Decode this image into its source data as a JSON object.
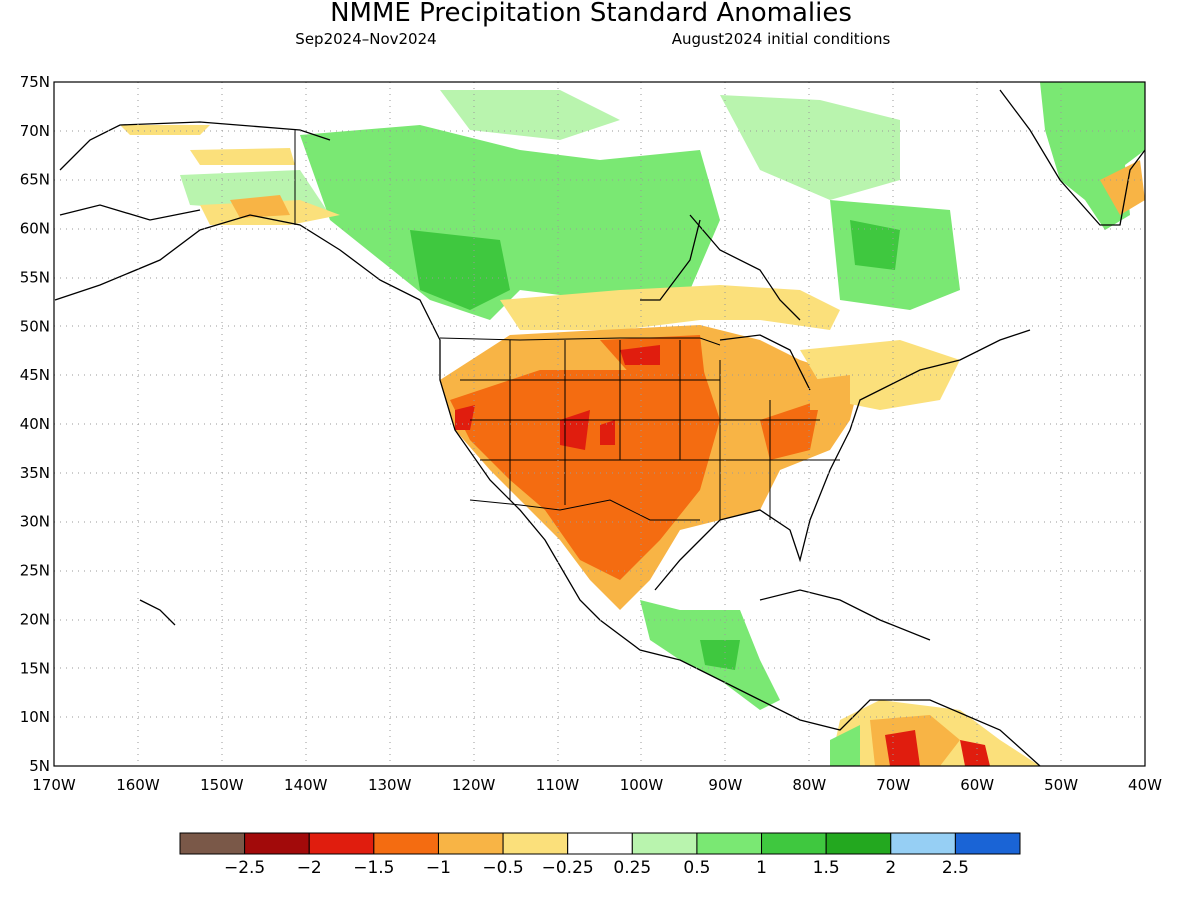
{
  "title": "NMME Precipitation Standard Anomalies",
  "subtitle_left": "Sep2024–Nov2024",
  "subtitle_right": "August2024 initial conditions",
  "map": {
    "lon_range": [
      -170,
      -40
    ],
    "lat_range": [
      5,
      75
    ],
    "lat_labels": [
      "75N",
      "70N",
      "65N",
      "60N",
      "55N",
      "50N",
      "45N",
      "40N",
      "35N",
      "30N",
      "25N",
      "20N",
      "15N",
      "10N",
      "5N"
    ],
    "lon_labels": [
      "170W",
      "160W",
      "150W",
      "140W",
      "130W",
      "120W",
      "110W",
      "100W",
      "90W",
      "80W",
      "70W",
      "60W",
      "50W",
      "40W"
    ],
    "gridlines": "dotted"
  },
  "colorbar": {
    "colors": [
      "#7a5848",
      "#a20a0a",
      "#e01d0e",
      "#f46c11",
      "#f8b445",
      "#fbe07b",
      "#ffffff",
      "#b9f4ae",
      "#7ae873",
      "#3fc83f",
      "#23a81f",
      "#96cff4",
      "#1a64d6"
    ],
    "labels": [
      "−2.5",
      "−2",
      "−1.5",
      "−1",
      "−0.5",
      "−0.25",
      "0.25",
      "0.5",
      "1",
      "1.5",
      "2",
      "2.5"
    ]
  }
}
